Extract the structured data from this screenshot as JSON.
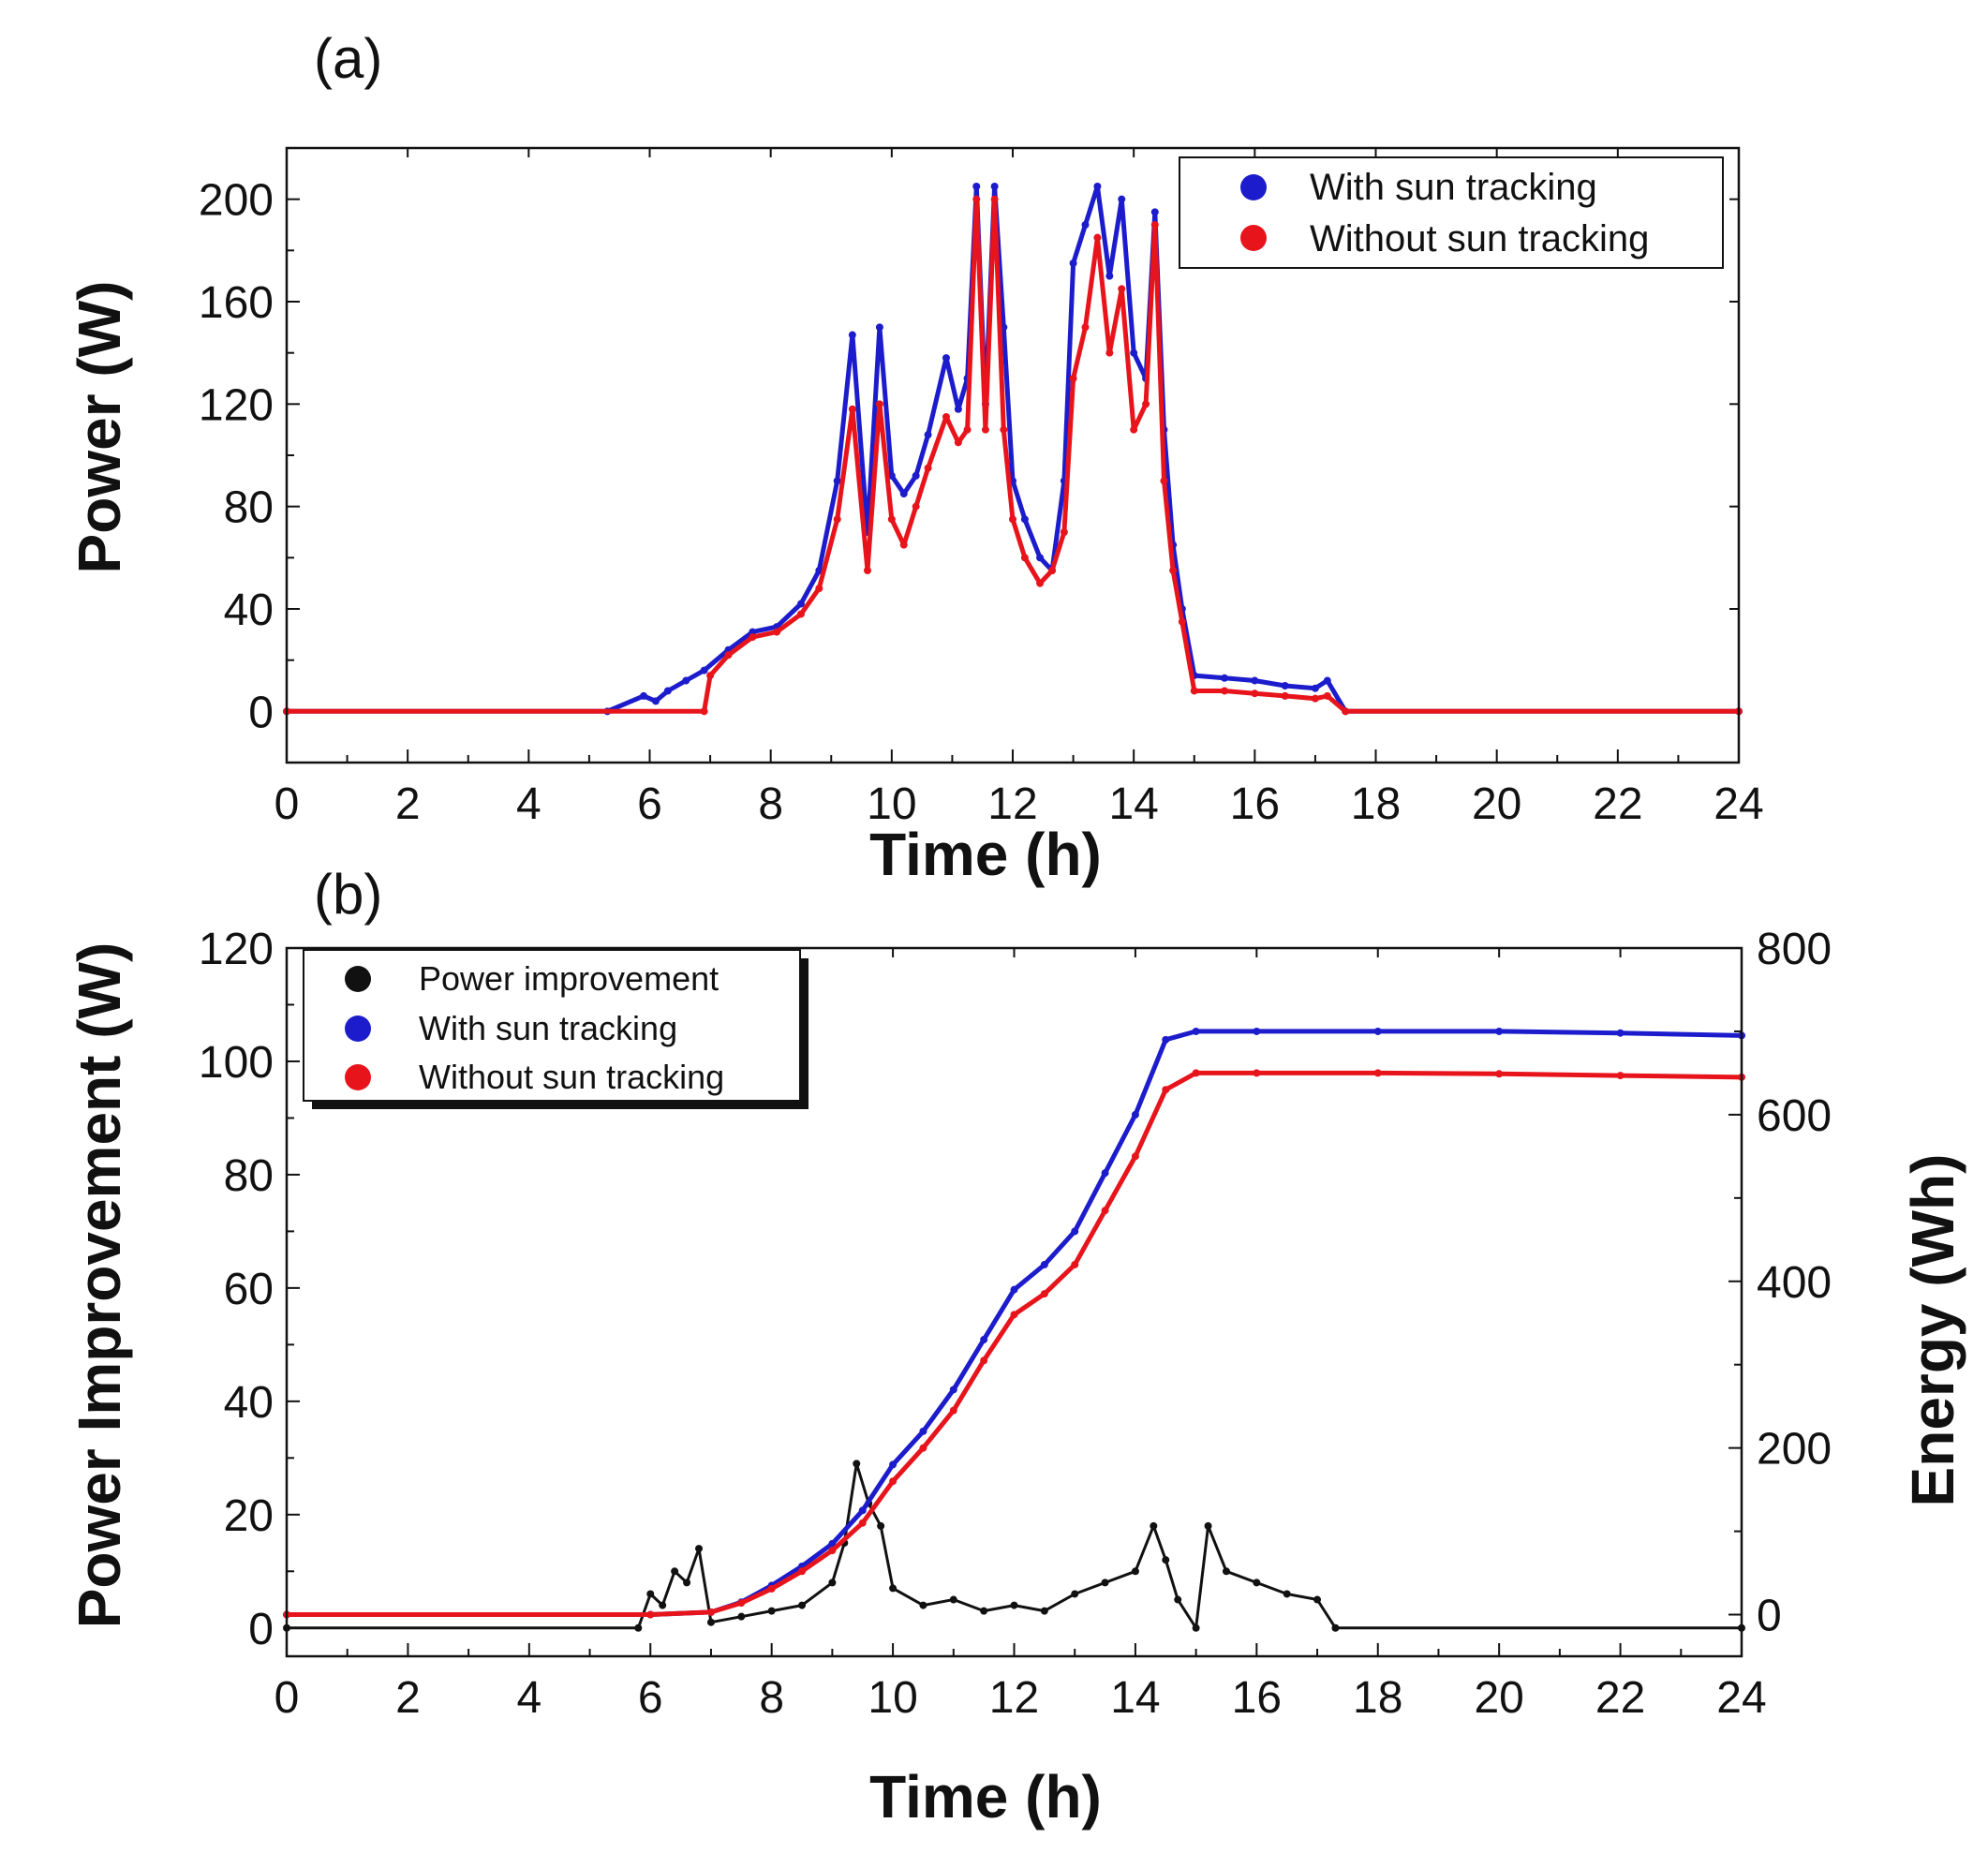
{
  "chart_data": [
    {
      "panel_label": "(a)",
      "type": "scatter",
      "title": "",
      "xlabel": "Time (h)",
      "ylabel": "Power (W)",
      "xlim": [
        0,
        24
      ],
      "ylim": [
        -20,
        220
      ],
      "x_ticks": [
        0,
        2,
        4,
        6,
        8,
        10,
        12,
        14,
        16,
        18,
        20,
        22,
        24
      ],
      "y_ticks": [
        0,
        40,
        80,
        120,
        160,
        200
      ],
      "grid": false,
      "legend_position": "top-right",
      "series": [
        {
          "name": "With sun tracking",
          "color": "#1c1ccc",
          "x": [
            0,
            5.3,
            5.9,
            6.1,
            6.3,
            6.6,
            6.9,
            7.3,
            7.7,
            8.1,
            8.5,
            8.8,
            9.1,
            9.35,
            9.6,
            9.8,
            10.0,
            10.2,
            10.4,
            10.6,
            10.9,
            11.1,
            11.25,
            11.4,
            11.55,
            11.7,
            11.85,
            12.0,
            12.2,
            12.45,
            12.65,
            12.85,
            13.0,
            13.2,
            13.4,
            13.6,
            13.8,
            14.0,
            14.2,
            14.35,
            14.5,
            14.65,
            14.8,
            15.0,
            15.5,
            16.0,
            16.5,
            17.0,
            17.2,
            17.5,
            24
          ],
          "y": [
            0,
            0,
            6,
            4,
            8,
            12,
            16,
            24,
            31,
            33,
            42,
            55,
            90,
            147,
            70,
            150,
            92,
            85,
            92,
            108,
            138,
            118,
            130,
            205,
            120,
            205,
            150,
            90,
            75,
            60,
            55,
            90,
            175,
            190,
            205,
            170,
            200,
            140,
            130,
            195,
            110,
            65,
            40,
            14,
            13,
            12,
            10,
            9,
            12,
            0,
            0
          ]
        },
        {
          "name": "Without sun tracking",
          "color": "#e8141c",
          "x": [
            0,
            6.9,
            7.0,
            7.3,
            7.7,
            8.1,
            8.5,
            8.8,
            9.1,
            9.35,
            9.6,
            9.8,
            10.0,
            10.2,
            10.4,
            10.6,
            10.9,
            11.1,
            11.25,
            11.4,
            11.55,
            11.7,
            11.85,
            12.0,
            12.2,
            12.45,
            12.65,
            12.85,
            13.0,
            13.2,
            13.4,
            13.6,
            13.8,
            14.0,
            14.2,
            14.35,
            14.5,
            14.65,
            14.8,
            15.0,
            15.5,
            16.0,
            16.5,
            17.0,
            17.2,
            17.5,
            24
          ],
          "y": [
            0,
            0,
            14,
            22,
            29,
            31,
            38,
            48,
            75,
            118,
            55,
            120,
            75,
            65,
            80,
            95,
            115,
            105,
            110,
            200,
            110,
            200,
            110,
            75,
            60,
            50,
            55,
            70,
            130,
            150,
            185,
            140,
            165,
            110,
            120,
            190,
            90,
            55,
            35,
            8,
            8,
            7,
            6,
            5,
            6,
            0,
            0
          ]
        }
      ]
    },
    {
      "panel_label": "(b)",
      "type": "scatter",
      "title": "",
      "xlabel": "Time (h)",
      "ylabel": "Power Improvement (W)",
      "y2label": "Energy (Wh)",
      "xlim": [
        0,
        24
      ],
      "ylim": [
        -5,
        120
      ],
      "y2lim": [
        -50,
        800
      ],
      "x_ticks": [
        0,
        2,
        4,
        6,
        8,
        10,
        12,
        14,
        16,
        18,
        20,
        22,
        24
      ],
      "y_ticks": [
        0,
        20,
        40,
        60,
        80,
        100,
        120
      ],
      "y2_ticks": [
        0,
        200,
        400,
        600,
        800
      ],
      "grid": false,
      "legend_position": "top-left",
      "series": [
        {
          "name": "Power improvement",
          "axis": "left",
          "color": "#111111",
          "x": [
            0,
            5.8,
            6.0,
            6.2,
            6.4,
            6.6,
            6.8,
            7.0,
            7.5,
            8.0,
            8.5,
            9.0,
            9.2,
            9.4,
            9.6,
            9.8,
            10.0,
            10.5,
            11.0,
            11.5,
            12.0,
            12.5,
            13.0,
            13.5,
            14.0,
            14.3,
            14.5,
            14.7,
            15.0,
            15.2,
            15.5,
            16.0,
            16.5,
            17.0,
            17.3,
            24
          ],
          "y": [
            0,
            0,
            6,
            4,
            10,
            8,
            14,
            1,
            2,
            3,
            4,
            8,
            15,
            29,
            22,
            18,
            7,
            4,
            5,
            3,
            4,
            3,
            6,
            8,
            10,
            18,
            12,
            5,
            0,
            18,
            10,
            8,
            6,
            5,
            0,
            0
          ]
        },
        {
          "name": "With sun tracking",
          "axis": "right",
          "color": "#1c1ccc",
          "x": [
            0,
            6.0,
            7.0,
            7.5,
            8.0,
            8.5,
            9.0,
            9.5,
            10.0,
            10.5,
            11.0,
            11.5,
            12.0,
            12.5,
            13.0,
            13.5,
            14.0,
            14.5,
            15.0,
            16.0,
            18.0,
            20.0,
            22.0,
            24.0
          ],
          "y": [
            0,
            0,
            3,
            15,
            35,
            58,
            85,
            125,
            180,
            220,
            270,
            330,
            390,
            420,
            460,
            530,
            600,
            690,
            700,
            700,
            700,
            700,
            698,
            695
          ]
        },
        {
          "name": "Without sun tracking",
          "axis": "right",
          "color": "#e8141c",
          "x": [
            0,
            6.0,
            7.0,
            7.5,
            8.0,
            8.5,
            9.0,
            9.5,
            10.0,
            10.5,
            11.0,
            11.5,
            12.0,
            12.5,
            13.0,
            13.5,
            14.0,
            14.5,
            15.0,
            16.0,
            18.0,
            20.0,
            22.0,
            24.0
          ],
          "y": [
            0,
            0,
            3,
            14,
            31,
            52,
            77,
            110,
            160,
            200,
            245,
            305,
            360,
            385,
            420,
            485,
            550,
            630,
            650,
            650,
            650,
            649,
            647,
            645
          ]
        }
      ]
    }
  ]
}
